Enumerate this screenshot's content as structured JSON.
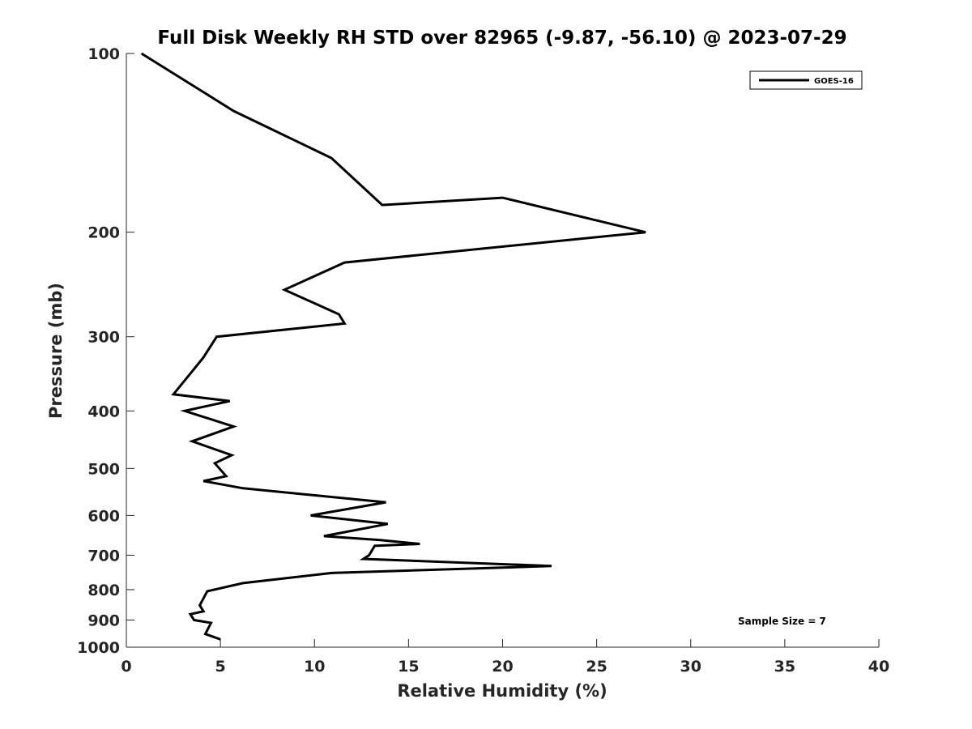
{
  "chart_data": {
    "type": "line",
    "title": "Full Disk Weekly RH STD over 82965 (-9.87, -56.10) @ 2023-07-29",
    "xlabel": "Relative Humidity (%)",
    "ylabel": "Pressure (mb)",
    "xlim": [
      0,
      40
    ],
    "ylim": [
      100,
      1000
    ],
    "y_scale": "log",
    "y_reversed": true,
    "grid": false,
    "legend_position": "top-right",
    "x_ticks": [
      0,
      5,
      10,
      15,
      20,
      25,
      30,
      35,
      40
    ],
    "y_ticks": [
      100,
      200,
      300,
      400,
      500,
      600,
      700,
      800,
      900,
      1000
    ],
    "annotation": "Sample Size = 7",
    "series": [
      {
        "name": "GOES-16",
        "color": "#000000",
        "points": [
          [
            0.8,
            100
          ],
          [
            5.7,
            125
          ],
          [
            10.9,
            150
          ],
          [
            13.6,
            180
          ],
          [
            20.0,
            175
          ],
          [
            27.6,
            200
          ],
          [
            11.6,
            225
          ],
          [
            8.4,
            250
          ],
          [
            11.3,
            275
          ],
          [
            11.6,
            285
          ],
          [
            4.8,
            300
          ],
          [
            4.1,
            325
          ],
          [
            3.6,
            340
          ],
          [
            2.5,
            375
          ],
          [
            5.5,
            385
          ],
          [
            3.1,
            400
          ],
          [
            5.7,
            425
          ],
          [
            3.5,
            450
          ],
          [
            5.6,
            475
          ],
          [
            4.7,
            490
          ],
          [
            5.3,
            515
          ],
          [
            4.1,
            525
          ],
          [
            6.2,
            540
          ],
          [
            13.8,
            570
          ],
          [
            9.8,
            600
          ],
          [
            13.9,
            620
          ],
          [
            10.5,
            650
          ],
          [
            13.5,
            660
          ],
          [
            15.6,
            670
          ],
          [
            13.2,
            675
          ],
          [
            12.9,
            700
          ],
          [
            12.6,
            710
          ],
          [
            22.6,
            730
          ],
          [
            10.9,
            750
          ],
          [
            6.2,
            780
          ],
          [
            4.3,
            805
          ],
          [
            3.9,
            850
          ],
          [
            4.1,
            870
          ],
          [
            3.4,
            880
          ],
          [
            3.6,
            900
          ],
          [
            4.5,
            910
          ],
          [
            4.2,
            950
          ],
          [
            5.0,
            970
          ]
        ]
      }
    ]
  }
}
